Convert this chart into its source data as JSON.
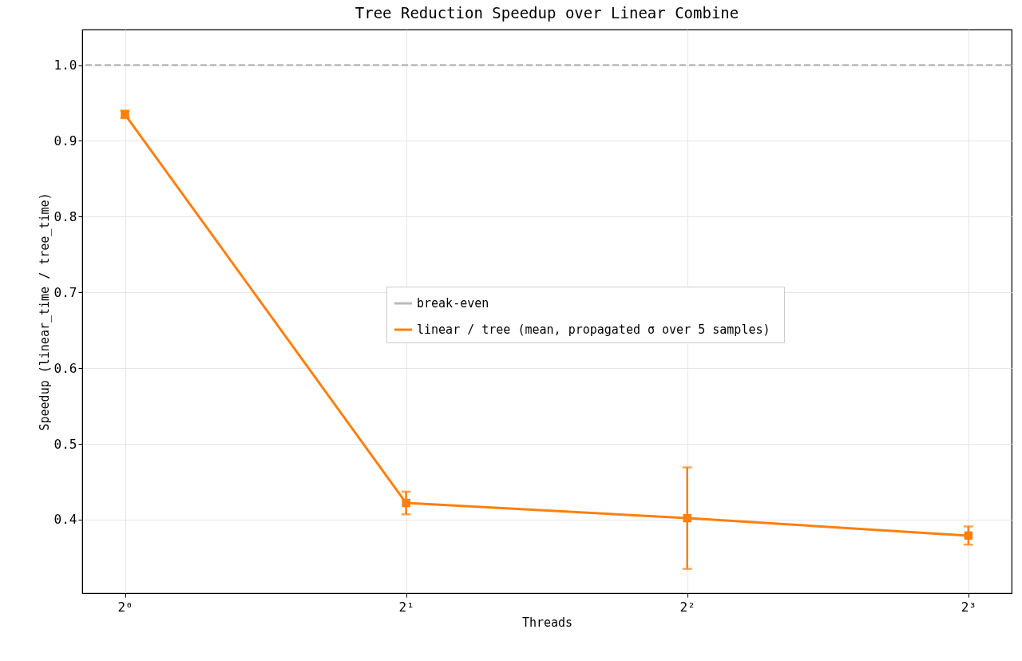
{
  "chart_data": {
    "type": "line",
    "title": "Tree Reduction Speedup over Linear Combine",
    "xlabel": "Threads",
    "ylabel": "Speedup (linear_time / tree_time)",
    "x": [
      1,
      2,
      4,
      8
    ],
    "series": [
      {
        "name": "linear / tree  (mean, propagated σ over 5 samples)",
        "color": "#ff7f0e",
        "values": [
          0.935,
          0.422,
          0.402,
          0.379
        ],
        "errors": [
          0.005,
          0.015,
          0.067,
          0.012
        ]
      }
    ],
    "log": "x",
    "xlim": [
      0.9,
      8.9
    ],
    "xticks": [
      {
        "value": 1,
        "label": "2⁰"
      },
      {
        "value": 2,
        "label": "2¹"
      },
      {
        "value": 4,
        "label": "2²"
      },
      {
        "value": 8,
        "label": "2³"
      }
    ],
    "ylim": [
      0.303,
      1.047
    ],
    "yticks": [
      0.4,
      0.5,
      0.6,
      0.7,
      0.8,
      0.9,
      {
        "value": 1,
        "label": "1.0"
      }
    ],
    "ref_lines": [
      {
        "axis": "y",
        "value": 1.0,
        "label": "break-even",
        "color": "#bbbbbb",
        "line_style": "dashed"
      }
    ],
    "grid": true,
    "legend": "right",
    "marker": "square",
    "line_style": "solid"
  }
}
